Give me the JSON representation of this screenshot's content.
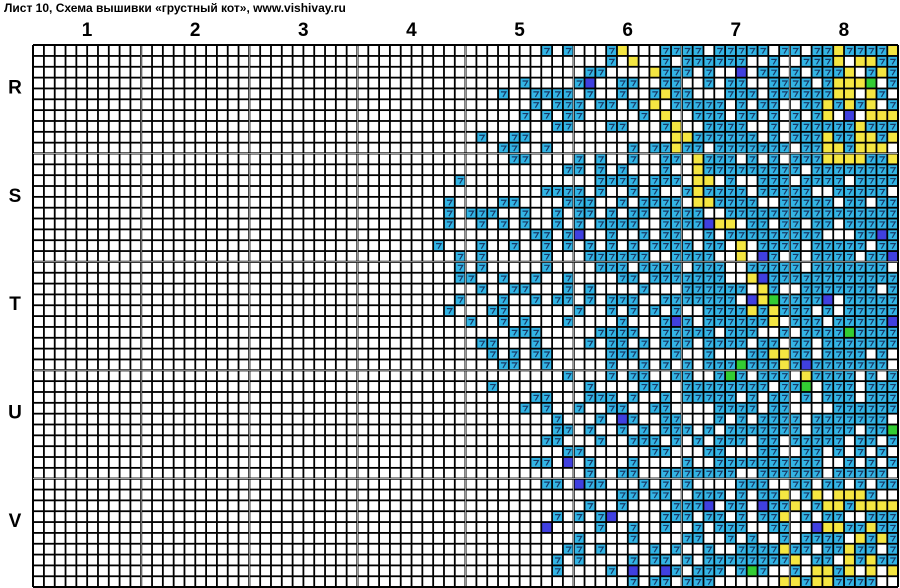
{
  "header": {
    "title": "Лист 10, Схема вышивки «грустный кот», www.vishivay.ru"
  },
  "columns": [
    "1",
    "2",
    "3",
    "4",
    "5",
    "6",
    "7",
    "8"
  ],
  "rows": [
    "R",
    "S",
    "T",
    "U",
    "V"
  ]
}
